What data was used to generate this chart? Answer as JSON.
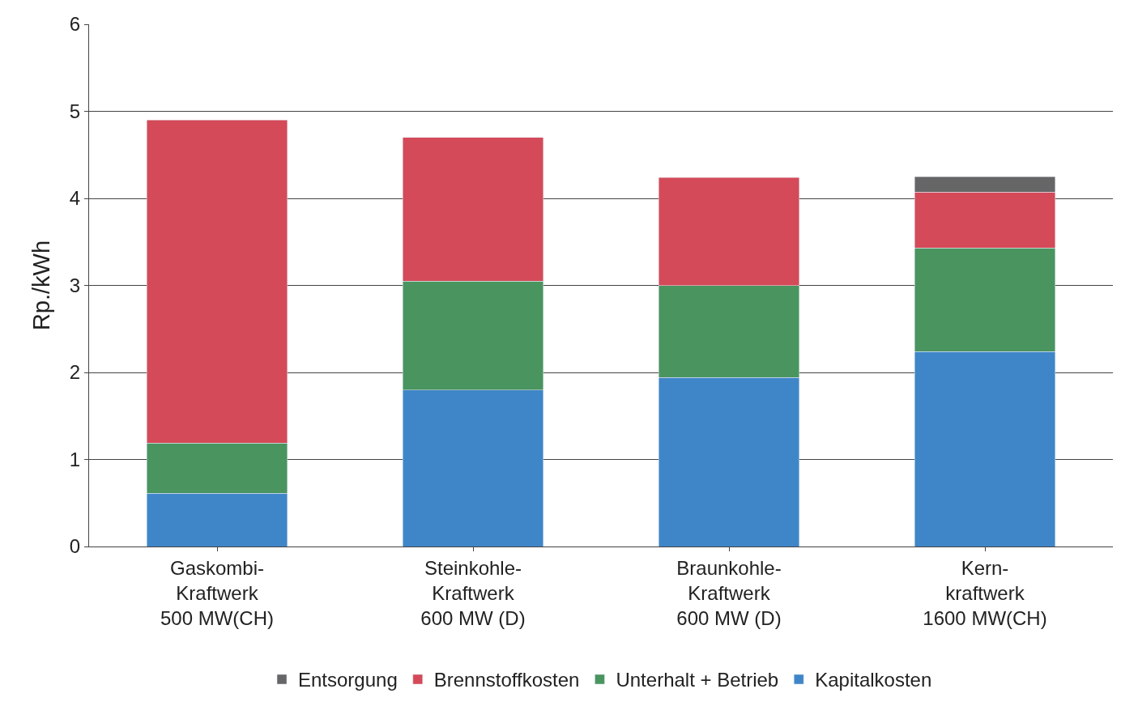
{
  "chart_data": {
    "type": "bar",
    "stacked": true,
    "ylabel": "Rp./kWh",
    "categories": [
      "Gaskombi-\nKraftwerk\n500 MW(CH)",
      "Steinkohle-\nKraftwerk\n600 MW (D)",
      "Braunkohle-\nKraftwerk\n600 MW (D)",
      "Kern-\nkraftwerk\n1600 MW(CH)"
    ],
    "series": [
      {
        "name": "Kapitalkosten",
        "color": "#3f86c8",
        "values": [
          0.61,
          1.8,
          1.94,
          2.24
        ]
      },
      {
        "name": "Unterhalt + Betrieb",
        "color": "#4a9460",
        "values": [
          0.58,
          1.25,
          1.06,
          1.19
        ]
      },
      {
        "name": "Brennstoffkosten",
        "color": "#d44a58",
        "values": [
          3.71,
          1.65,
          1.24,
          0.64
        ]
      },
      {
        "name": "Entsorgung",
        "color": "#666666",
        "values": [
          null,
          null,
          null,
          0.18
        ]
      }
    ],
    "ylim": [
      0,
      6
    ],
    "yticks": [
      0,
      1,
      2,
      3,
      4,
      5,
      6
    ],
    "grid": "y",
    "legend": "bottom"
  }
}
